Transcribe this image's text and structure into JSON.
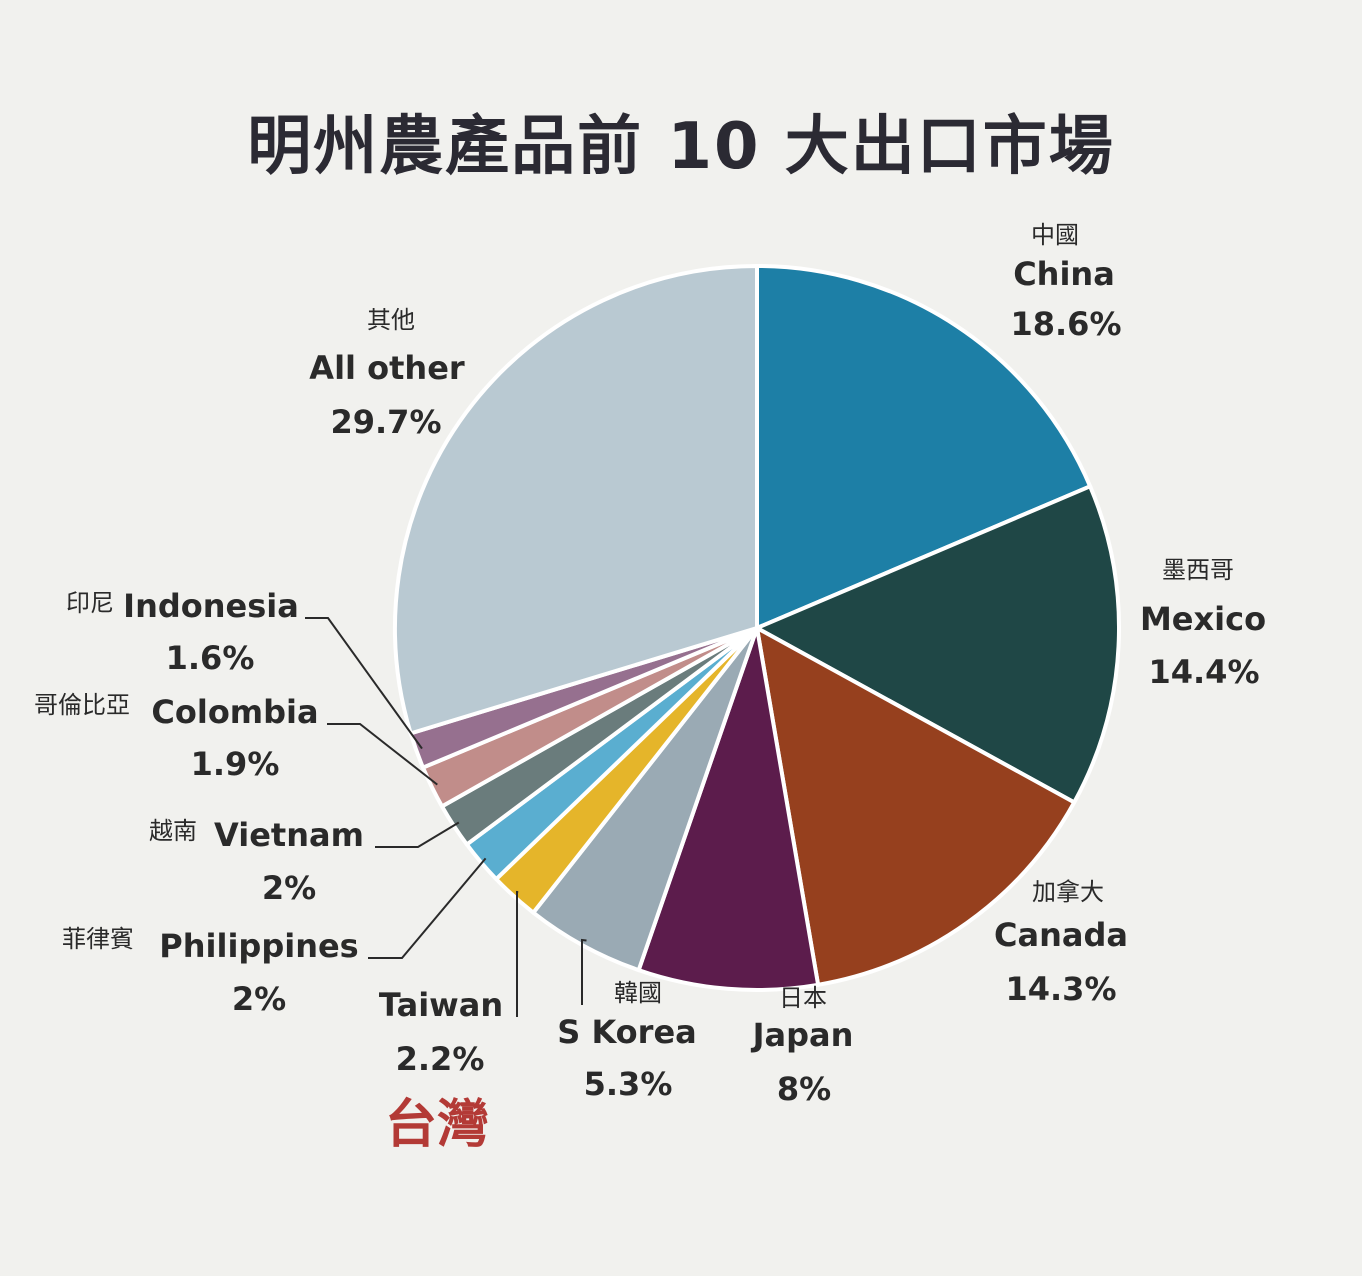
{
  "title": "明州農產品前 10 大出口市場",
  "highlight_label": "台灣",
  "colors": {
    "highlight": "#b33a36"
  },
  "chart_data": {
    "type": "pie",
    "title": "明州農產品前 10 大出口市場",
    "start": "12 o'clock, clockwise",
    "slices": [
      {
        "zh": "中國",
        "name": "China",
        "value": 18.6,
        "label": "18.6%",
        "color": "#1d7fa6"
      },
      {
        "zh": "墨西哥",
        "name": "Mexico",
        "value": 14.4,
        "label": "14.4%",
        "color": "#1f4746"
      },
      {
        "zh": "加拿大",
        "name": "Canada",
        "value": 14.3,
        "label": "14.3%",
        "color": "#96401e"
      },
      {
        "zh": "日本",
        "name": "Japan",
        "value": 8,
        "label": "8%",
        "color": "#5c1c4c"
      },
      {
        "zh": "韓國",
        "name": "S Korea",
        "value": 5.3,
        "label": "5.3%",
        "color": "#9aaab4"
      },
      {
        "zh": "",
        "name": "Taiwan",
        "value": 2.2,
        "label": "2.2%",
        "color": "#e5b52a"
      },
      {
        "zh": "菲律賓",
        "name": "Philippines",
        "value": 2,
        "label": "2%",
        "color": "#5aaed0"
      },
      {
        "zh": "越南",
        "name": "Vietnam",
        "value": 2,
        "label": "2%",
        "color": "#6a7c7c"
      },
      {
        "zh": "哥倫比亞",
        "name": "Colombia",
        "value": 1.9,
        "label": "1.9%",
        "color": "#c18d8a"
      },
      {
        "zh": "印尼",
        "name": "Indonesia",
        "value": 1.6,
        "label": "1.6%",
        "color": "#96708f"
      },
      {
        "zh": "其他",
        "name": "All other",
        "value": 29.7,
        "label": "29.7%",
        "color": "#b9c9d2"
      }
    ]
  }
}
